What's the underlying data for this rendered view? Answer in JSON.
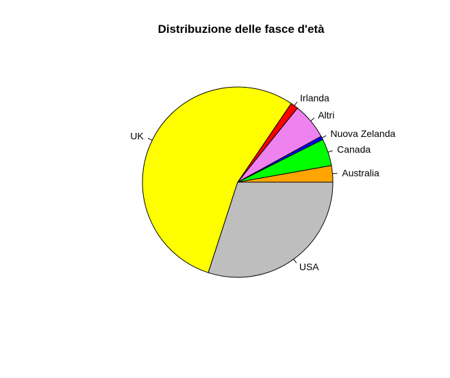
{
  "chart_data": {
    "type": "pie",
    "title": "Distribuzione delle fasce d'età",
    "start_angle_deg": 0,
    "direction": "counterclockwise",
    "slices": [
      {
        "label": "Australia",
        "value": 2.8,
        "color": "#FFA500"
      },
      {
        "label": "Canada",
        "value": 4.6,
        "color": "#00FF00"
      },
      {
        "label": "Nuova Zelanda",
        "value": 0.6,
        "color": "#0000FF"
      },
      {
        "label": "Altri",
        "value": 6.2,
        "color": "#EE82EE"
      },
      {
        "label": "Irlanda",
        "value": 1.3,
        "color": "#FF0000"
      },
      {
        "label": "UK",
        "value": 54.5,
        "color": "#FFFF00"
      },
      {
        "label": "USA",
        "value": 30.0,
        "color": "#BEBEBE"
      }
    ]
  }
}
